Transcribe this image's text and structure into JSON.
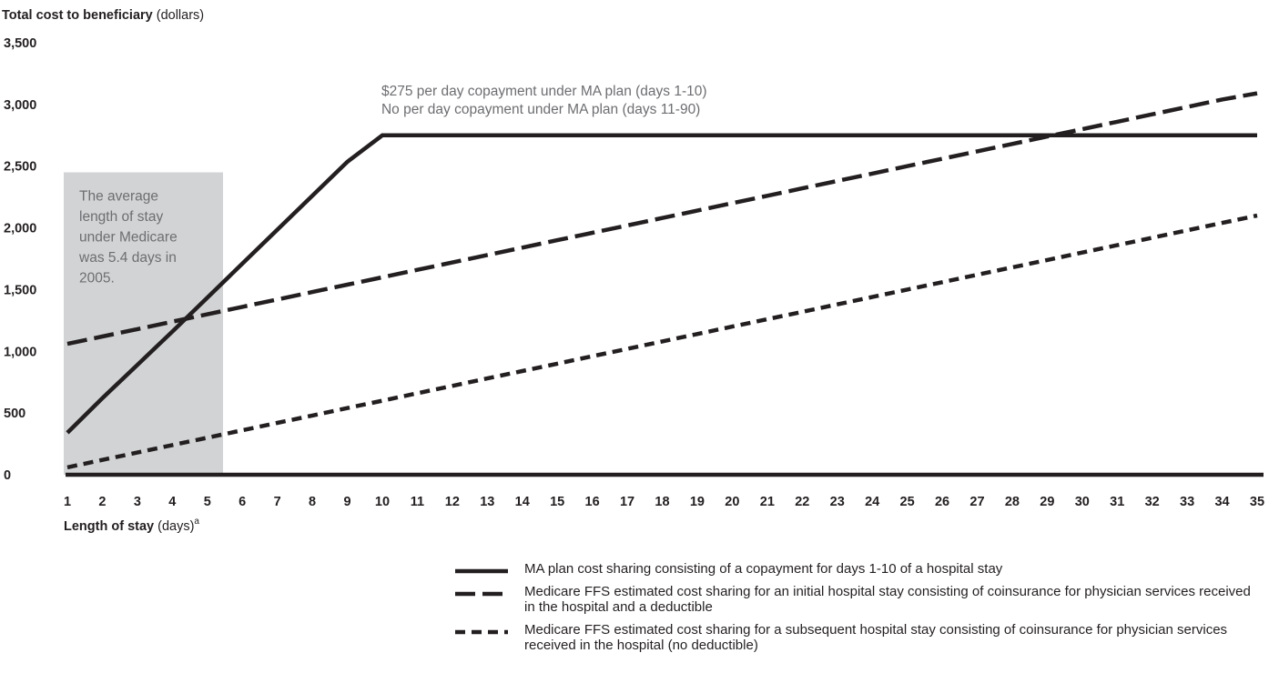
{
  "chart_data": {
    "type": "line",
    "ylabel": {
      "bold": "Total cost to beneficiary",
      "unit": "(dollars)"
    },
    "xlabel": {
      "bold": "Length of stay",
      "unit": "(days)",
      "sup": "a"
    },
    "x": [
      1,
      2,
      3,
      4,
      5,
      6,
      7,
      8,
      9,
      10,
      11,
      12,
      13,
      14,
      15,
      16,
      17,
      18,
      19,
      20,
      21,
      22,
      23,
      24,
      25,
      26,
      27,
      28,
      29,
      30,
      31,
      32,
      33,
      34,
      35
    ],
    "x_ticklabels": [
      "1",
      "2",
      "3",
      "4",
      "5",
      "6",
      "7",
      "8",
      "9",
      "10",
      "11",
      "12",
      "13",
      "14",
      "15",
      "16",
      "17",
      "18",
      "19",
      "20",
      "21",
      "22",
      "23",
      "24",
      "25",
      "26",
      "27",
      "28",
      "29",
      "30",
      "31",
      "32",
      "33",
      "34",
      "35"
    ],
    "ylim": [
      0,
      3500
    ],
    "y_ticks": [
      0,
      500,
      1000,
      1500,
      2000,
      2500,
      3000,
      3500
    ],
    "y_ticklabels": [
      "0",
      "500",
      "1,000",
      "1,500",
      "2,000",
      "2,500",
      "3,000",
      "3,500"
    ],
    "grid": false,
    "legend_position": "bottom",
    "series": [
      {
        "name": "MA plan cost sharing consisting of a copayment for days 1-10 of a hospital stay",
        "style": "solid",
        "color": "#231f20",
        "values": [
          340,
          620,
          890,
          1160,
          1435,
          1710,
          1985,
          2260,
          2535,
          2750,
          2750,
          2750,
          2750,
          2750,
          2750,
          2750,
          2750,
          2750,
          2750,
          2750,
          2750,
          2750,
          2750,
          2750,
          2750,
          2750,
          2750,
          2750,
          2750,
          2750,
          2750,
          2750,
          2750,
          2750,
          2750
        ]
      },
      {
        "name": "Medicare FFS estimated cost sharing for an initial hospital stay consisting of coinsurance for physician services received in the hospital and a deductible",
        "style": "dashed",
        "color": "#231f20",
        "values": [
          1060,
          1120,
          1180,
          1240,
          1300,
          1360,
          1420,
          1480,
          1540,
          1600,
          1660,
          1720,
          1780,
          1840,
          1900,
          1960,
          2020,
          2080,
          2140,
          2200,
          2260,
          2320,
          2380,
          2440,
          2500,
          2560,
          2620,
          2680,
          2740,
          2800,
          2860,
          2920,
          2980,
          3040,
          3090
        ]
      },
      {
        "name": "Medicare FFS estimated cost sharing for a subsequent hospital stay consisting of coinsurance for physician services received in the hospital (no deductible)",
        "style": "dotted",
        "color": "#231f20",
        "values": [
          60,
          120,
          180,
          240,
          300,
          360,
          420,
          480,
          540,
          600,
          660,
          720,
          780,
          840,
          900,
          960,
          1020,
          1080,
          1140,
          1200,
          1260,
          1320,
          1380,
          1440,
          1500,
          1560,
          1620,
          1680,
          1740,
          1800,
          1860,
          1920,
          1980,
          2040,
          2100
        ]
      }
    ],
    "shaded_region": {
      "x_range": [
        1,
        5.5
      ],
      "y_range": [
        0,
        2450
      ],
      "color": "#d1d3d4",
      "text": [
        "The average",
        "length of stay",
        "under Medicare",
        "was 5.4 days in",
        "2005."
      ]
    },
    "annotations": [
      {
        "x": 10,
        "y": 2790,
        "lines": [
          "$275 per day copayment under MA plan (days 1-10)",
          "No per day copayment under MA plan (days 11-90)"
        ]
      }
    ]
  }
}
